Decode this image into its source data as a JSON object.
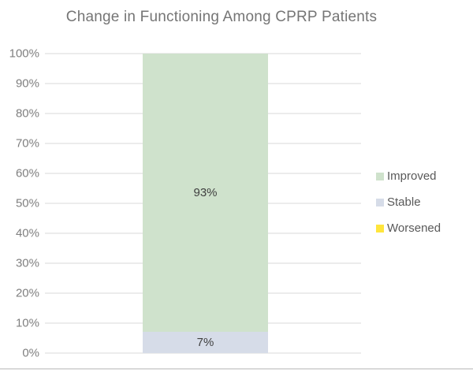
{
  "page": {
    "background": "#ffffff",
    "bottom_border_color": "#d9d9d9"
  },
  "styles": {
    "title_color": "#757575",
    "tick_color": "#7f7f7f",
    "grid_color": "#d9d9d9",
    "data_label_color": "#3f3f3f",
    "legend_text_color": "#595959"
  },
  "chart_data": {
    "type": "bar",
    "stacked": true,
    "title": "Change in Functioning Among CPRP Patients",
    "categories": [
      ""
    ],
    "series": [
      {
        "name": "Improved",
        "values": [
          93
        ],
        "color": "#cfe2cc",
        "data_label": "93%"
      },
      {
        "name": "Stable",
        "values": [
          7
        ],
        "color": "#d6dce8",
        "data_label": "7%"
      },
      {
        "name": "Worsened",
        "values": [
          0
        ],
        "color": "#ffe53c",
        "data_label": ""
      }
    ],
    "stack_order_bottom_to_top": [
      "Worsened",
      "Stable",
      "Improved"
    ],
    "xlabel": "",
    "ylabel": "",
    "ylim": [
      0,
      100
    ],
    "ytick_step": 10,
    "ytick_labels": [
      "0%",
      "10%",
      "20%",
      "30%",
      "40%",
      "50%",
      "60%",
      "70%",
      "80%",
      "90%",
      "100%"
    ],
    "grid": true,
    "legend_position": "right",
    "legend_entries": [
      "Improved",
      "Stable",
      "Worsened"
    ]
  }
}
